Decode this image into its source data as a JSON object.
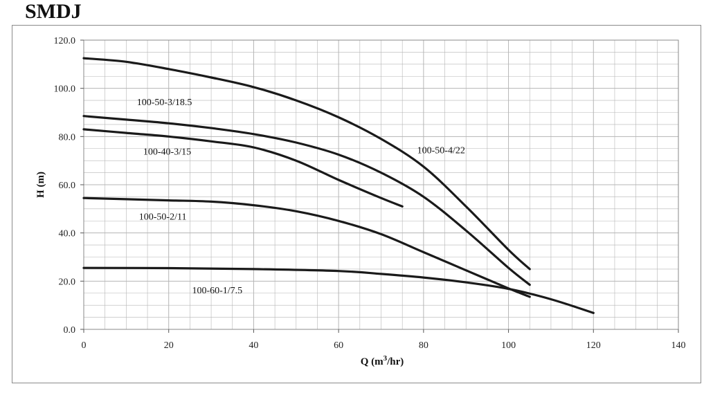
{
  "page": {
    "title": "SMDJ"
  },
  "chart_data": {
    "type": "line",
    "title": "SMDJ",
    "xlabel": "Q (m3/hr)",
    "xlabel_base": "Q (m",
    "xlabel_sup": "3",
    "xlabel_tail": "/hr)",
    "ylabel": "H (m)",
    "xlim": [
      0,
      140
    ],
    "ylim": [
      0,
      120
    ],
    "x_ticks": [
      "0",
      "20",
      "40",
      "60",
      "80",
      "100",
      "120",
      "140"
    ],
    "y_ticks": [
      "0.0",
      "20.0",
      "40.0",
      "60.0",
      "80.0",
      "100.0",
      "120.0"
    ],
    "grid": true,
    "colors": {
      "line": "#1a1a1a",
      "grid": "#b5b5b5",
      "frame": "#8a8a8a"
    },
    "series": [
      {
        "name": "100-50-4/22",
        "label_at": [
          78.5,
          73
        ],
        "points": [
          [
            0,
            112.5
          ],
          [
            10,
            111
          ],
          [
            20,
            108
          ],
          [
            30,
            104.5
          ],
          [
            40,
            100.5
          ],
          [
            50,
            95
          ],
          [
            60,
            88
          ],
          [
            70,
            79
          ],
          [
            80,
            67.5
          ],
          [
            90,
            51
          ],
          [
            100,
            33
          ],
          [
            105,
            25
          ]
        ]
      },
      {
        "name": "100-50-3/18.5",
        "label_at": [
          12.5,
          93
        ],
        "points": [
          [
            0,
            88.5
          ],
          [
            10,
            87
          ],
          [
            20,
            85.5
          ],
          [
            30,
            83.5
          ],
          [
            40,
            81
          ],
          [
            50,
            77.5
          ],
          [
            60,
            72.5
          ],
          [
            70,
            65
          ],
          [
            80,
            55
          ],
          [
            90,
            41
          ],
          [
            100,
            25.5
          ],
          [
            105,
            18.5
          ]
        ]
      },
      {
        "name": "100-40-3/15",
        "label_at": [
          14,
          72.5
        ],
        "points": [
          [
            0,
            83
          ],
          [
            10,
            81.5
          ],
          [
            20,
            80
          ],
          [
            30,
            78
          ],
          [
            40,
            75.5
          ],
          [
            50,
            70
          ],
          [
            60,
            62
          ],
          [
            70,
            54.5
          ],
          [
            75,
            51
          ]
        ]
      },
      {
        "name": "100-50-2/11",
        "label_at": [
          13,
          45.5
        ],
        "points": [
          [
            0,
            54.5
          ],
          [
            10,
            54
          ],
          [
            20,
            53.5
          ],
          [
            30,
            53
          ],
          [
            40,
            51.5
          ],
          [
            50,
            49
          ],
          [
            60,
            45
          ],
          [
            70,
            39.5
          ],
          [
            80,
            32
          ],
          [
            90,
            24.5
          ],
          [
            100,
            17
          ],
          [
            105,
            13.5
          ]
        ]
      },
      {
        "name": "100-60-1/7.5",
        "label_at": [
          25.5,
          15
        ],
        "points": [
          [
            0,
            25.5
          ],
          [
            20,
            25.4
          ],
          [
            40,
            25
          ],
          [
            60,
            24.2
          ],
          [
            70,
            23
          ],
          [
            80,
            21.5
          ],
          [
            90,
            19.5
          ],
          [
            100,
            16.8
          ],
          [
            110,
            12.5
          ],
          [
            120,
            6.8
          ]
        ]
      }
    ]
  }
}
